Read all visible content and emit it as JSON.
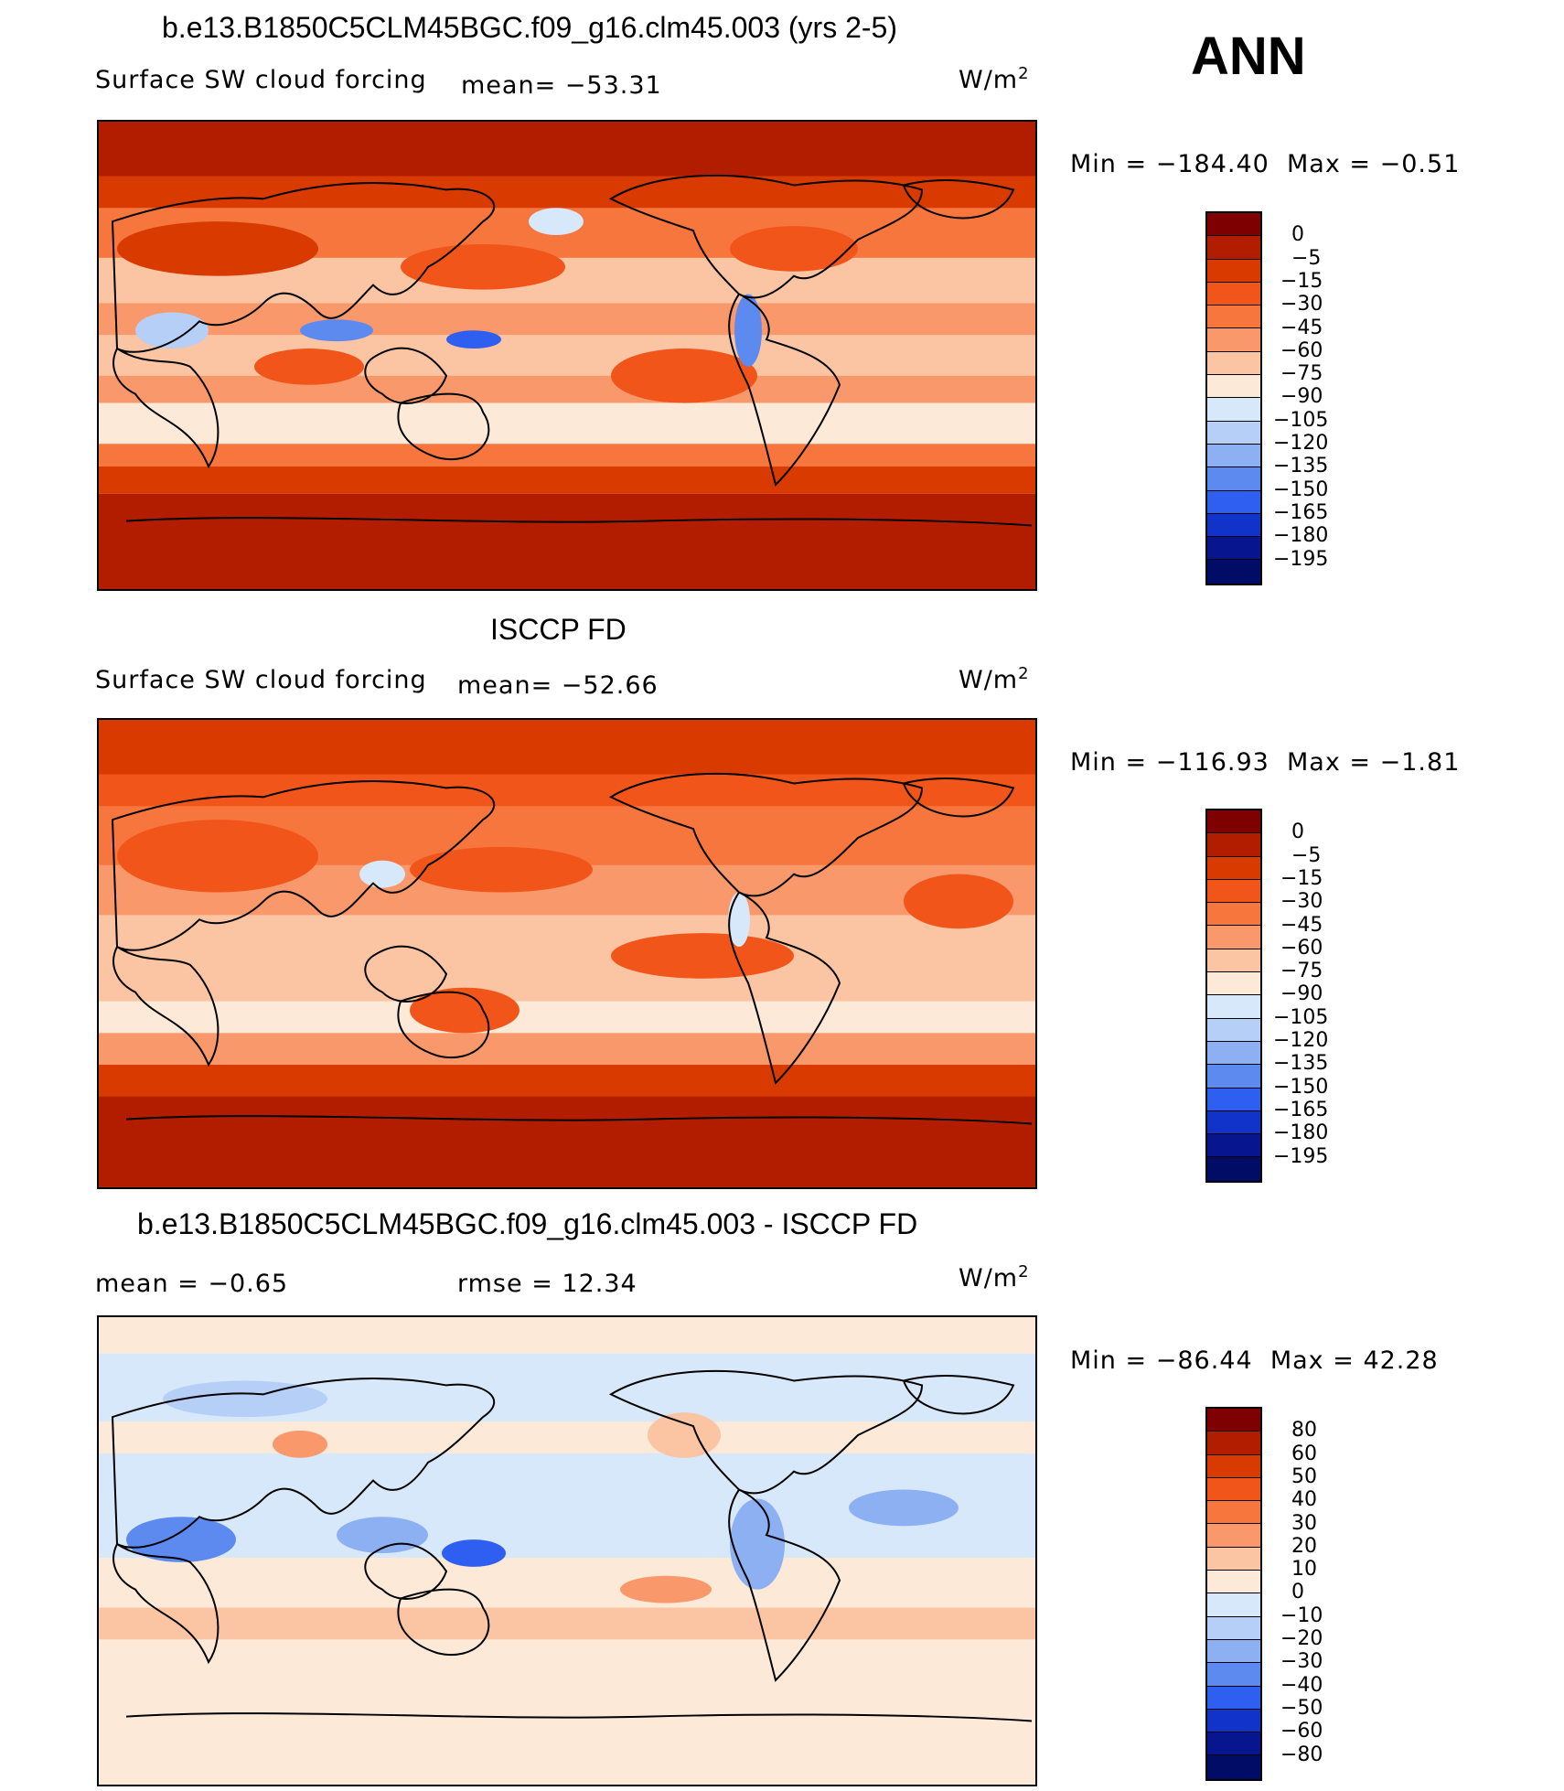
{
  "header": {
    "season": "ANN"
  },
  "panels": [
    {
      "title": "b.e13.B1850C5CLM45BGC.f09_g16.clm45.003 (yrs 2-5)",
      "variable": "Surface SW cloud forcing",
      "mean": "mean= −53.31",
      "units": "W/m",
      "units_sup": "2",
      "min_label": "Min",
      "min": "= −184.40",
      "max_label": "Max",
      "max": "= −0.51",
      "colorbar": [
        "0",
        "−5",
        "−15",
        "−30",
        "−45",
        "−60",
        "−75",
        "−90",
        "−105",
        "−120",
        "−135",
        "−150",
        "−165",
        "−180",
        "−195"
      ],
      "map_type": "model"
    },
    {
      "title": "ISCCP FD",
      "variable": "Surface SW cloud forcing",
      "mean": "mean= −52.66",
      "units": "W/m",
      "units_sup": "2",
      "min_label": "Min",
      "min": "= −116.93",
      "max_label": "Max",
      "max": "= −1.81",
      "colorbar": [
        "0",
        "−5",
        "−15",
        "−30",
        "−45",
        "−60",
        "−75",
        "−90",
        "−105",
        "−120",
        "−135",
        "−150",
        "−165",
        "−180",
        "−195"
      ],
      "map_type": "obs"
    },
    {
      "title": "b.e13.B1850C5CLM45BGC.f09_g16.clm45.003 - ISCCP FD",
      "mean": "mean = −0.65",
      "rmse": "rmse = 12.34",
      "units": "W/m",
      "units_sup": "2",
      "min_label": "Min",
      "min": "= −86.44",
      "max_label": "Max",
      "max": "= 42.28",
      "colorbar": [
        "80",
        "60",
        "50",
        "40",
        "30",
        "20",
        "10",
        "0",
        "−10",
        "−20",
        "−30",
        "−40",
        "−50",
        "−60",
        "−80"
      ],
      "map_type": "diff"
    }
  ],
  "colors": {
    "bar": [
      "#7f0000",
      "#b21d00",
      "#d83a00",
      "#f2551a",
      "#f7763d",
      "#f9996b",
      "#fbc5a3",
      "#fde9d8",
      "#d7e8fb",
      "#b5cff7",
      "#8cb0f2",
      "#5d8aef",
      "#2f5ff0",
      "#1233c9",
      "#07168f",
      "#000c66"
    ]
  }
}
